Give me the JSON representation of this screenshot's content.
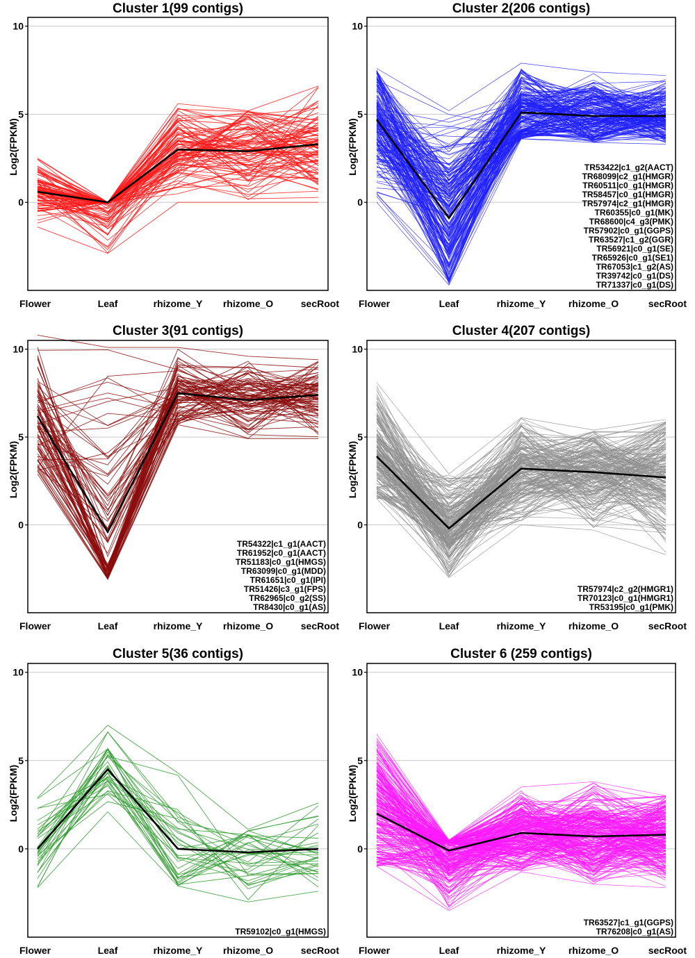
{
  "chart_data": [
    {
      "type": "line",
      "title": "Cluster 1(99 contigs)",
      "categories": [
        "Flower",
        "Leaf",
        "rhizome_Y",
        "rhizome_O",
        "secRoot"
      ],
      "ylabel": "Log2(FPKM)",
      "ylim": [
        -5,
        10.5
      ],
      "yticks": [
        0,
        5,
        10
      ],
      "grid": true,
      "color": "#ff1a1a",
      "contig_count": 99,
      "mean_line": [
        0.6,
        0.0,
        3.0,
        2.9,
        3.3
      ],
      "range_min": [
        -1.4,
        -2.9,
        0.0,
        0.0,
        0.0
      ],
      "range_max": [
        2.5,
        0.0,
        5.6,
        5.2,
        6.6
      ],
      "annotations": []
    },
    {
      "type": "line",
      "title": "Cluster 2(206 contigs)",
      "categories": [
        "Flower",
        "Leaf",
        "rhizome_Y",
        "rhizome_O",
        "secRoot"
      ],
      "ylabel": "Log2(FPKM)",
      "ylim": [
        -5,
        10.5
      ],
      "yticks": [
        0,
        5,
        10
      ],
      "grid": true,
      "color": "#1f1fff",
      "contig_count": 206,
      "mean_line": [
        4.7,
        -0.9,
        5.1,
        4.9,
        4.9
      ],
      "range_min": [
        0.0,
        -4.7,
        3.6,
        3.4,
        3.3
      ],
      "range_max": [
        7.6,
        5.2,
        7.9,
        7.4,
        7.2
      ],
      "annotations": [
        "TR53422|c1_g2(AACT)",
        "TR68099|c2_g1(HMGR)",
        "TR60511|c0_g1(HMGR)",
        "TR58457|c0_g1(HMGR)",
        "TR57974|c2_g1(HMGR)",
        "TR60355|c0_g1(MK)",
        "TR68600|c4_g3(PMK)",
        "TR57902|c0_g1(GGPS)",
        "TR63527|c1_g2(GGR)",
        "TR56921|c0_g1(SE)",
        "TR65926|c0_g1(SE1)",
        "TR67053|c1_g2(AS)",
        "TR39742|c0_g1(DS)",
        "TR71337|c0_g1(DS)"
      ]
    },
    {
      "type": "line",
      "title": "Cluster 3(91 contigs)",
      "categories": [
        "Flower",
        "Leaf",
        "rhizome_Y",
        "rhizome_O",
        "secRoot"
      ],
      "ylabel": "Log2(FPKM)",
      "ylim": [
        -5,
        10.5
      ],
      "yticks": [
        0,
        5,
        10
      ],
      "grid": true,
      "color": "#8b0d0d",
      "contig_count": 91,
      "mean_line": [
        6.2,
        -0.4,
        7.5,
        7.1,
        7.4
      ],
      "range_min": [
        2.9,
        -3.1,
        5.7,
        4.9,
        4.9
      ],
      "range_max": [
        10.8,
        10.1,
        10.1,
        9.6,
        9.4
      ],
      "annotations": [
        "TR54322|c1_g1(AACT)",
        "TR61952|c0_g1(AACT)",
        "TR51183|c0_g1(HMGS)",
        "TR63099|c0_g1(MDD)",
        "TR61651|c0_g1(IPI)",
        "TR51426|c3_g1(FPS)",
        "TR62965|c0_g2(SS)",
        "TR8430|c0_g1(AS)"
      ]
    },
    {
      "type": "line",
      "title": "Cluster 4(207 contigs)",
      "categories": [
        "Flower",
        "Leaf",
        "rhizome_Y",
        "rhizome_O",
        "secRoot"
      ],
      "ylabel": "Log2(FPKM)",
      "ylim": [
        -5,
        10.5
      ],
      "yticks": [
        0,
        5,
        10
      ],
      "grid": true,
      "color": "#8f8f8f",
      "contig_count": 207,
      "mean_line": [
        3.9,
        -0.2,
        3.2,
        3.0,
        2.7
      ],
      "range_min": [
        1.5,
        -3.0,
        0.0,
        -0.3,
        -1.7
      ],
      "range_max": [
        8.1,
        2.9,
        6.1,
        5.4,
        6.0
      ],
      "annotations": [
        "TR57974|c2_g2(HMGR1)",
        "TR70123|c0_g1(HMGR1)",
        "TR53195|c0_g1(PMK)"
      ]
    },
    {
      "type": "line",
      "title": "Cluster 5(36 contigs)",
      "categories": [
        "Flower",
        "Leaf",
        "rhizome_Y",
        "rhizome_O",
        "secRoot"
      ],
      "ylabel": "Log2(FPKM)",
      "ylim": [
        -5,
        10.5
      ],
      "yticks": [
        0,
        5,
        10
      ],
      "grid": true,
      "color": "#2e9a2e",
      "contig_count": 36,
      "mean_line": [
        0.0,
        4.5,
        0.0,
        -0.2,
        0.0
      ],
      "range_min": [
        -2.2,
        2.1,
        -2.1,
        -3.0,
        -2.4
      ],
      "range_max": [
        2.9,
        7.0,
        4.3,
        1.1,
        2.6
      ],
      "annotations": [
        "TR59102|c0_g1(HMGS)"
      ]
    },
    {
      "type": "line",
      "title": "Cluster 6 (259 contigs)",
      "categories": [
        "Flower",
        "Leaf",
        "rhizome_Y",
        "rhizome_O",
        "secRoot"
      ],
      "ylabel": "Log2(FPKM)",
      "ylim": [
        -5,
        10.5
      ],
      "yticks": [
        0,
        5,
        10
      ],
      "grid": true,
      "color": "#ff1aff",
      "contig_count": 259,
      "mean_line": [
        2.0,
        -0.1,
        0.9,
        0.7,
        0.8
      ],
      "range_min": [
        -1.0,
        -3.5,
        -1.3,
        -2.0,
        -2.2
      ],
      "range_max": [
        6.5,
        0.5,
        3.5,
        3.8,
        3.0
      ],
      "annotations": [
        "TR63527|c1_g1(GGPS)",
        "TR76208|c0_g1(AS)"
      ]
    }
  ]
}
